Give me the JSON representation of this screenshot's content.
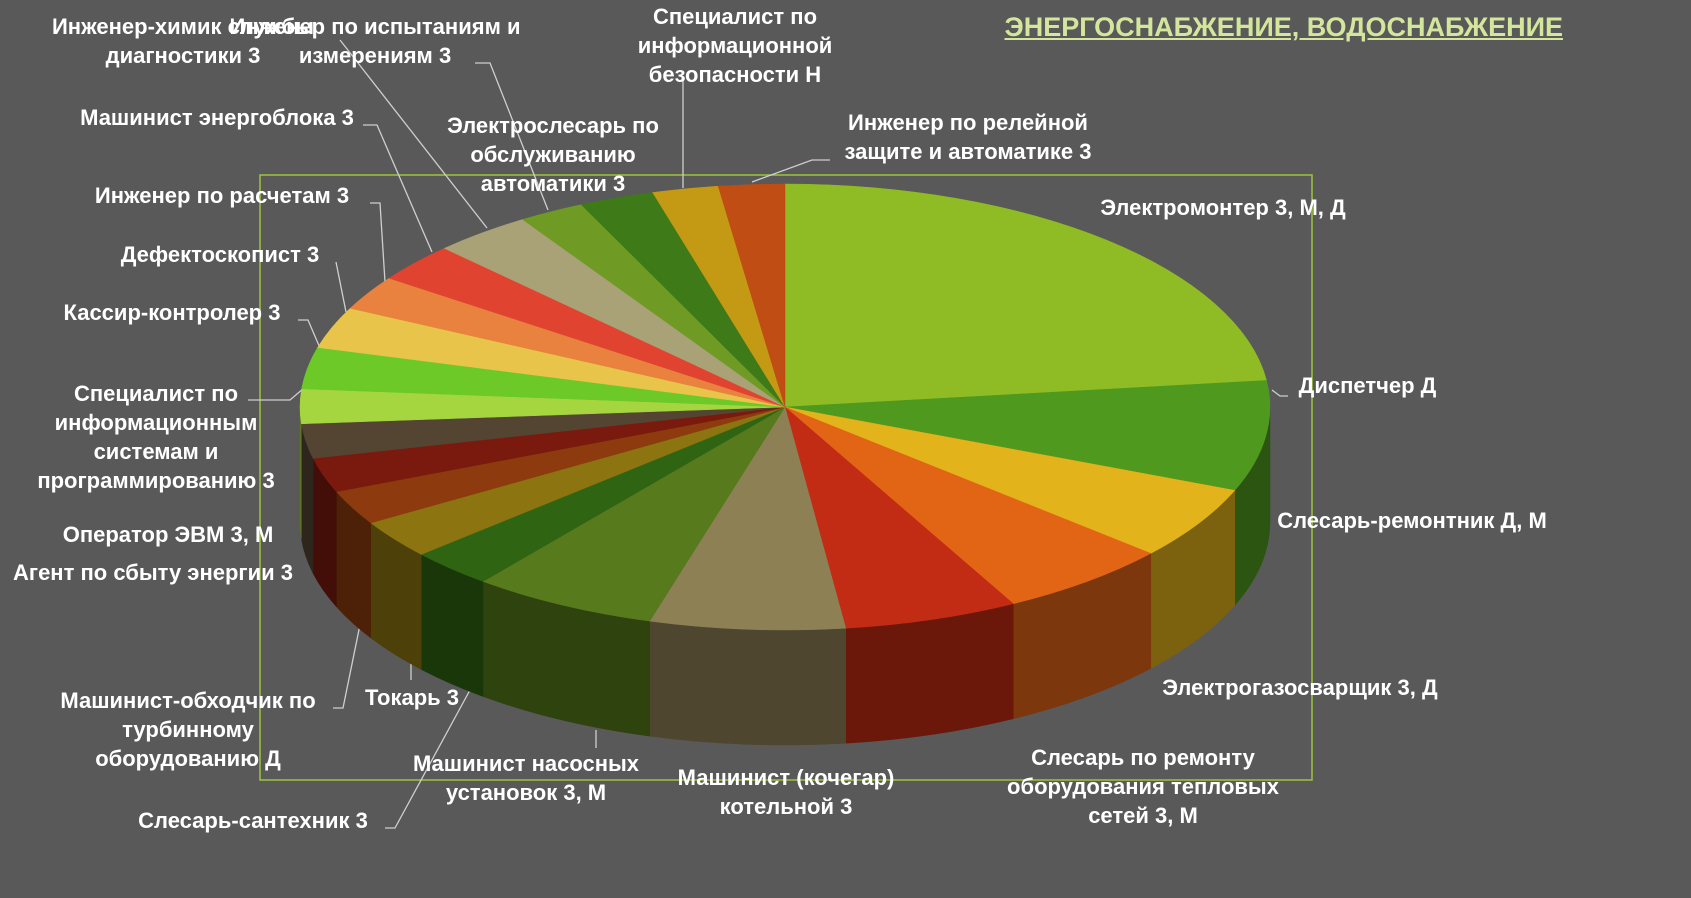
{
  "chart_data": {
    "type": "pie",
    "title": "ЭНЕРГОСНАБЖЕНИЕ, ВОДОСНАБЖЕНИЕ",
    "categories": [
      "Электромонтер 3, М, Д",
      "Диспетчер Д",
      "Слесарь-ремонтник Д, М",
      "Электрогазосварщик 3, Д",
      "Слесарь по ремонту оборудования тепловых сетей 3, М",
      "Машинист (кочегар) котельной 3",
      "Машинист насосных установок 3, М",
      "Слесарь-сантехник 3",
      "Токарь 3",
      "Машинист-обходчик по турбинному оборудованию Д",
      "Агент по сбыту энергии 3",
      "Оператор ЭВМ 3, М",
      "Специалист по информационным системам и программированию 3",
      "Кассир-контролер 3",
      "Дефектоскопист 3",
      "Инженер по расчетам 3",
      "Машинист энергоблока 3",
      "Инженер-химик службы диагностики 3",
      "Инженер по испытаниям и измерениям 3",
      "Электрослесарь по обслуживанию автоматики 3",
      "Специалист по информационной безопасности Н",
      "Инженер по релейной защите и автоматике 3"
    ],
    "values": [
      23.1,
      8,
      5.3,
      5.8,
      5.8,
      6.5,
      6.2,
      2.8,
      2.8,
      2.5,
      2.5,
      2.5,
      2.5,
      3,
      3,
      2.5,
      2.8,
      3.3,
      2.2,
      2.5,
      2.2,
      2.2
    ],
    "colors": [
      "#8fbb25",
      "#4f9a1e",
      "#e2b31b",
      "#e26415",
      "#c22c14",
      "#8e8055",
      "#567a1c",
      "#2f6413",
      "#8c7410",
      "#8c3a0e",
      "#7a1a0e",
      "#544532",
      "#a5d640",
      "#6cc928",
      "#e8c44a",
      "#e8823e",
      "#e04430",
      "#a9a276",
      "#6f9a24",
      "#3f7a18",
      "#c49a14",
      "#c04d14"
    ]
  }
}
